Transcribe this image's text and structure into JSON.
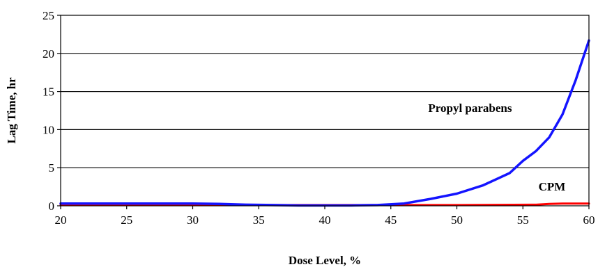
{
  "chart_data": {
    "type": "line",
    "title": "",
    "xlabel": "Dose Level, %",
    "ylabel": "Lag Time, hr",
    "xlim": [
      20,
      60
    ],
    "ylim": [
      0,
      25
    ],
    "x_ticks": [
      20,
      25,
      30,
      35,
      40,
      45,
      50,
      55,
      60
    ],
    "y_ticks": [
      0,
      5,
      10,
      15,
      20,
      25
    ],
    "grid": "horizontal",
    "legend": "none",
    "series": [
      {
        "name": "Propyl parabens",
        "color": "#1414ff",
        "x": [
          20,
          30,
          32,
          34,
          36,
          38,
          40,
          42,
          44,
          46,
          48,
          50,
          52,
          54,
          55,
          56,
          57,
          58,
          59,
          60
        ],
        "y": [
          0.3,
          0.3,
          0.25,
          0.15,
          0.1,
          0.05,
          0.05,
          0.05,
          0.1,
          0.3,
          0.9,
          1.6,
          2.7,
          4.3,
          5.9,
          7.2,
          9.0,
          12.0,
          16.5,
          21.7
        ]
      },
      {
        "name": "CPM",
        "color": "#ff0000",
        "x": [
          20,
          30,
          40,
          50,
          56,
          57,
          58,
          60
        ],
        "y": [
          0.1,
          0.1,
          0.1,
          0.1,
          0.15,
          0.25,
          0.3,
          0.3
        ]
      }
    ],
    "annotations": [
      {
        "text": "Propyl parabens",
        "x": 51,
        "y": 12.3
      },
      {
        "text": "CPM",
        "x": 57.2,
        "y": 2.0
      }
    ]
  }
}
